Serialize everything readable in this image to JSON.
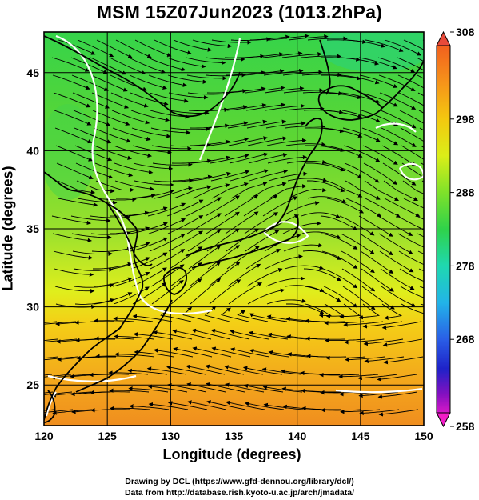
{
  "title": "MSM 15Z07Jun2023 (1013.2hPa)",
  "xlabel": "Longitude (degrees)",
  "ylabel": "Latitude  (degrees)",
  "credits": {
    "line1": "Drawing by DCL (https://www.gfd-dennou.org/library/dcl/)",
    "line2": "Data from http://database.rish.kyoto-u.ac.jp/arch/jmadata/"
  },
  "map": {
    "lon_range": [
      120,
      150
    ],
    "lat_range": [
      22.4,
      47.6
    ],
    "x_ticks": [
      "120",
      "125",
      "130",
      "135",
      "140",
      "145",
      "150"
    ],
    "y_ticks": [
      "25",
      "30",
      "35",
      "40",
      "45"
    ],
    "grid": true
  },
  "colorbar": {
    "range": [
      258,
      308
    ],
    "ticks": [
      "308",
      "298",
      "288",
      "278",
      "268",
      "258"
    ],
    "colors": [
      "#e8004a",
      "#f24a1c",
      "#f7861a",
      "#f3c90f",
      "#e4ef18",
      "#99e326",
      "#3fd43a",
      "#1fd8a8",
      "#22b8e8",
      "#2a6ae6",
      "#1e2bd0",
      "#5a12b8",
      "#c214c8",
      "#f21cc8"
    ]
  },
  "field_colors": {
    "south": "#f29a1e",
    "subtropic": "#f3d31a",
    "mid": "#bfea28",
    "north": "#5ed633",
    "coast": "#000000",
    "contour": "#ffffff",
    "streamline": "#000000"
  }
}
